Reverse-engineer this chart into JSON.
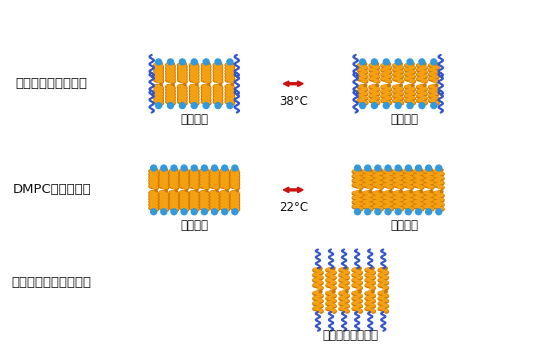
{
  "bg_color": "#ffffff",
  "lipid_orange": "#F5A010",
  "lipid_stripe": "#CC7700",
  "blue_head": "#3399DD",
  "blue_wavy": "#3355CC",
  "red_arrow": "#CC1111",
  "label_color": "#111111",
  "row1_label": "共集合ナノカプセル",
  "row2_label": "DMPCリポソーム",
  "row3_label": "両親媒性ポリペプチド",
  "gel_label": "ゲル状態",
  "liquid_label": "液晶状態",
  "no_transition_label": "相転移を示さない",
  "temp1": "38°C",
  "temp2": "22°C"
}
